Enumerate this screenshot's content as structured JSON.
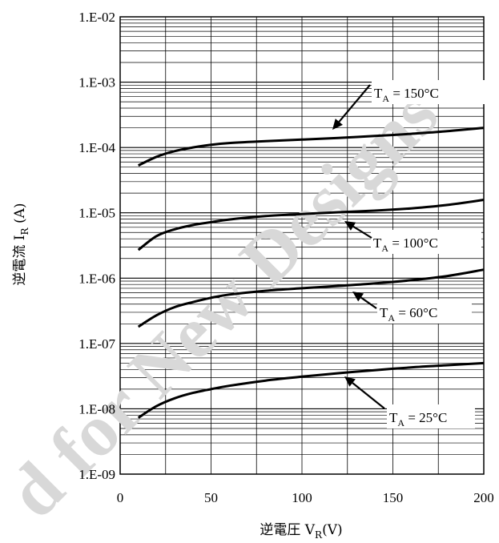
{
  "chart_data": {
    "type": "line",
    "xlabel_prefix": "逆電圧 V",
    "xlabel_sub": "R",
    "xlabel_suffix": "(V)",
    "ylabel_prefix": "逆電流 I",
    "ylabel_sub": "R",
    "ylabel_suffix": " (A)",
    "xlim": [
      0,
      200
    ],
    "ylim": [
      1e-09,
      0.01
    ],
    "yscale": "log",
    "grid": true,
    "x_ticks": [
      "0",
      "50",
      "100",
      "150",
      "200"
    ],
    "y_ticks": [
      "1.E-09",
      "1.E-08",
      "1.E-07",
      "1.E-06",
      "1.E-05",
      "1.E-04",
      "1.E-03",
      "1.E-02"
    ],
    "series": [
      {
        "label_prefix": "T",
        "label_sub": "A",
        "label_suffix": " = 150°C",
        "x": [
          10,
          20,
          30,
          40,
          50,
          60,
          80,
          100,
          120,
          140,
          160,
          180,
          200
        ],
        "y": [
          5.3e-05,
          7.2e-05,
          8.8e-05,
          0.0001,
          0.00011,
          0.000117,
          0.000125,
          0.000132,
          0.00014,
          0.00015,
          0.000162,
          0.000178,
          0.0002
        ]
      },
      {
        "label_prefix": "T",
        "label_sub": "A",
        "label_suffix": " = 100°C",
        "x": [
          10,
          20,
          30,
          40,
          50,
          60,
          80,
          100,
          120,
          140,
          160,
          180,
          200
        ],
        "y": [
          2.7e-06,
          4.4e-06,
          5.6e-06,
          6.5e-06,
          7.2e-06,
          7.9e-06,
          8.9e-06,
          9.6e-06,
          1.02e-05,
          1.08e-05,
          1.17e-05,
          1.32e-05,
          1.58e-05
        ]
      },
      {
        "label_prefix": "T",
        "label_sub": "A",
        "label_suffix": " = 60°C",
        "x": [
          10,
          20,
          30,
          40,
          50,
          60,
          80,
          100,
          120,
          140,
          160,
          180,
          200
        ],
        "y": [
          1.8e-07,
          2.7e-07,
          3.6e-07,
          4.3e-07,
          5e-07,
          5.6e-07,
          6.4e-07,
          7e-07,
          7.6e-07,
          8.3e-07,
          9.3e-07,
          1.08e-06,
          1.35e-06
        ]
      },
      {
        "label_prefix": "T",
        "label_sub": "A",
        "label_suffix": " = 25°C",
        "x": [
          10,
          20,
          30,
          40,
          50,
          60,
          80,
          100,
          120,
          140,
          160,
          180,
          200
        ],
        "y": [
          7.3e-09,
          1.1e-08,
          1.45e-08,
          1.75e-08,
          2e-08,
          2.25e-08,
          2.7e-08,
          3.1e-08,
          3.5e-08,
          3.9e-08,
          4.3e-08,
          4.65e-08,
          5e-08
        ]
      }
    ]
  },
  "watermark": "d for New Designs"
}
